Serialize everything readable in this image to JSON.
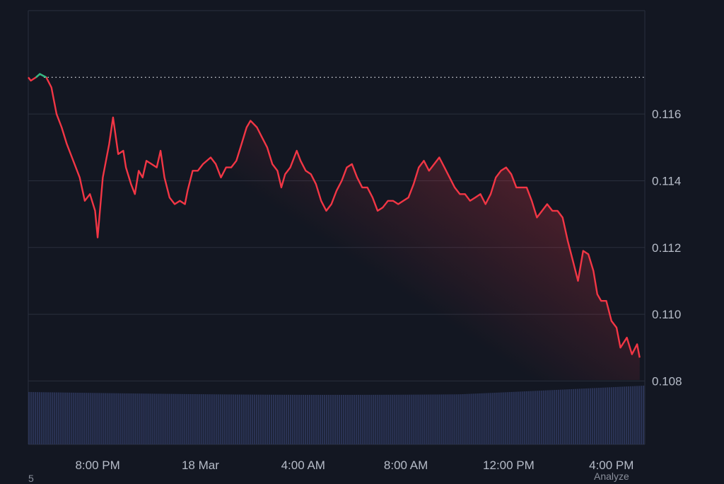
{
  "colors": {
    "background": "#131722",
    "grid": "#2a2f3d",
    "line_down": "#f23645",
    "line_up": "#2ebd85",
    "volume": "#2a3354",
    "axis_text": "#b6bcc8"
  },
  "footer": {
    "left_text": "5",
    "right_text": "Analyze"
  },
  "chart_data": {
    "type": "line",
    "title": "",
    "xlabel": "",
    "ylabel": "",
    "ylim": [
      0.1061,
      0.1191
    ],
    "grid": true,
    "reference_line": {
      "value": 0.1171,
      "style": "dotted"
    },
    "y_ticks": [
      "0.116",
      "0.114",
      "0.112",
      "0.110",
      "0.108"
    ],
    "y_tick_values": [
      0.116,
      0.114,
      0.112,
      0.11,
      0.108
    ],
    "x_ticks": [
      "8:00 PM",
      "18 Mar",
      "4:00 AM",
      "8:00 AM",
      "12:00 PM",
      "4:00 PM"
    ],
    "x_tick_hours": [
      20,
      24,
      28,
      32,
      36,
      40
    ],
    "x_range_hours": [
      17.3,
      41.3
    ],
    "series": [
      {
        "points": [
          [
            17.3,
            0.1171
          ],
          [
            17.4,
            0.117
          ],
          [
            17.6,
            0.1171
          ],
          [
            17.75,
            0.1172
          ],
          [
            18.0,
            0.1171
          ],
          [
            18.2,
            0.1168
          ],
          [
            18.4,
            0.116
          ],
          [
            18.6,
            0.1156
          ],
          [
            18.8,
            0.1151
          ],
          [
            19.0,
            0.1147
          ],
          [
            19.3,
            0.1141
          ],
          [
            19.5,
            0.1134
          ],
          [
            19.7,
            0.1136
          ],
          [
            19.9,
            0.1131
          ],
          [
            20.0,
            0.1123
          ],
          [
            20.2,
            0.1141
          ],
          [
            20.45,
            0.1151
          ],
          [
            20.6,
            0.1159
          ],
          [
            20.8,
            0.1148
          ],
          [
            21.0,
            0.1149
          ],
          [
            21.1,
            0.1144
          ],
          [
            21.3,
            0.1139
          ],
          [
            21.45,
            0.1136
          ],
          [
            21.6,
            0.1143
          ],
          [
            21.75,
            0.1141
          ],
          [
            21.9,
            0.1146
          ],
          [
            22.1,
            0.1145
          ],
          [
            22.3,
            0.1144
          ],
          [
            22.45,
            0.1149
          ],
          [
            22.6,
            0.1141
          ],
          [
            22.8,
            0.1135
          ],
          [
            23.0,
            0.1133
          ],
          [
            23.2,
            0.1134
          ],
          [
            23.4,
            0.1133
          ],
          [
            23.5,
            0.1137
          ],
          [
            23.7,
            0.1143
          ],
          [
            23.9,
            0.1143
          ],
          [
            24.1,
            0.1145
          ],
          [
            24.4,
            0.1147
          ],
          [
            24.6,
            0.1145
          ],
          [
            24.8,
            0.1141
          ],
          [
            25.0,
            0.1144
          ],
          [
            25.2,
            0.1144
          ],
          [
            25.4,
            0.1146
          ],
          [
            25.6,
            0.1151
          ],
          [
            25.8,
            0.1156
          ],
          [
            25.95,
            0.1158
          ],
          [
            26.2,
            0.1156
          ],
          [
            26.4,
            0.1153
          ],
          [
            26.6,
            0.115
          ],
          [
            26.8,
            0.1145
          ],
          [
            27.0,
            0.1143
          ],
          [
            27.15,
            0.1138
          ],
          [
            27.3,
            0.1142
          ],
          [
            27.5,
            0.1144
          ],
          [
            27.75,
            0.1149
          ],
          [
            27.9,
            0.1146
          ],
          [
            28.1,
            0.1143
          ],
          [
            28.3,
            0.1142
          ],
          [
            28.5,
            0.1139
          ],
          [
            28.7,
            0.1134
          ],
          [
            28.9,
            0.1131
          ],
          [
            29.1,
            0.1133
          ],
          [
            29.3,
            0.1137
          ],
          [
            29.5,
            0.114
          ],
          [
            29.7,
            0.1144
          ],
          [
            29.9,
            0.1145
          ],
          [
            30.1,
            0.1141
          ],
          [
            30.3,
            0.1138
          ],
          [
            30.5,
            0.1138
          ],
          [
            30.7,
            0.1135
          ],
          [
            30.9,
            0.1131
          ],
          [
            31.1,
            0.1132
          ],
          [
            31.3,
            0.1134
          ],
          [
            31.5,
            0.1134
          ],
          [
            31.7,
            0.1133
          ],
          [
            31.9,
            0.1134
          ],
          [
            32.1,
            0.1135
          ],
          [
            32.3,
            0.1139
          ],
          [
            32.5,
            0.1144
          ],
          [
            32.7,
            0.1146
          ],
          [
            32.9,
            0.1143
          ],
          [
            33.1,
            0.1145
          ],
          [
            33.3,
            0.1147
          ],
          [
            33.5,
            0.1144
          ],
          [
            33.7,
            0.1141
          ],
          [
            33.9,
            0.1138
          ],
          [
            34.1,
            0.1136
          ],
          [
            34.3,
            0.1136
          ],
          [
            34.5,
            0.1134
          ],
          [
            34.7,
            0.1135
          ],
          [
            34.9,
            0.1136
          ],
          [
            35.1,
            0.1133
          ],
          [
            35.3,
            0.1136
          ],
          [
            35.5,
            0.1141
          ],
          [
            35.7,
            0.1143
          ],
          [
            35.9,
            0.1144
          ],
          [
            36.1,
            0.1142
          ],
          [
            36.3,
            0.1138
          ],
          [
            36.5,
            0.1138
          ],
          [
            36.7,
            0.1138
          ],
          [
            36.9,
            0.1134
          ],
          [
            37.1,
            0.1129
          ],
          [
            37.3,
            0.1131
          ],
          [
            37.5,
            0.1133
          ],
          [
            37.7,
            0.1131
          ],
          [
            37.9,
            0.1131
          ],
          [
            38.1,
            0.1129
          ],
          [
            38.3,
            0.1122
          ],
          [
            38.5,
            0.1116
          ],
          [
            38.7,
            0.111
          ],
          [
            38.9,
            0.1119
          ],
          [
            39.1,
            0.1118
          ],
          [
            39.3,
            0.1113
          ],
          [
            39.45,
            0.1106
          ],
          [
            39.6,
            0.1104
          ],
          [
            39.8,
            0.1104
          ],
          [
            40.0,
            0.1098
          ],
          [
            40.2,
            0.1096
          ],
          [
            40.35,
            0.109
          ],
          [
            40.6,
            0.1093
          ],
          [
            40.8,
            0.1088
          ],
          [
            41.0,
            0.1091
          ],
          [
            41.1,
            0.1087
          ]
        ]
      }
    ],
    "volume_level_hint": "uniform bars along bottom band"
  }
}
